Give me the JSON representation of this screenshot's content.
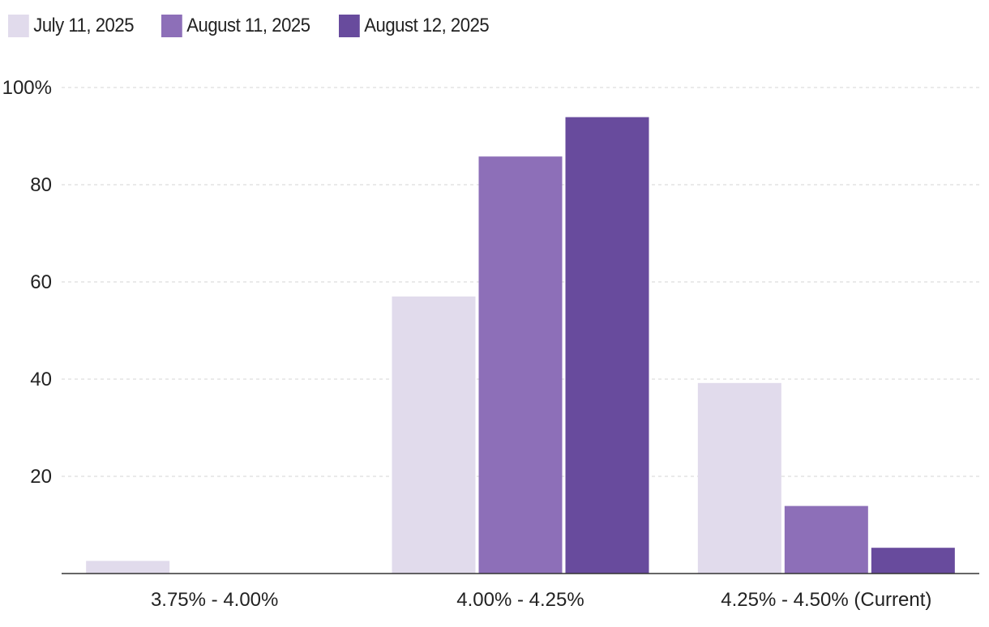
{
  "chart_data": {
    "type": "bar",
    "categories": [
      "3.75% - 4.00%",
      "4.00% - 4.25%",
      "4.25% - 4.50% (Current)"
    ],
    "series": [
      {
        "name": "July 11, 2025",
        "values": [
          2.6,
          57.0,
          39.2
        ],
        "color": "#e1dbec"
      },
      {
        "name": "August 11, 2025",
        "values": [
          0,
          85.8,
          13.9
        ],
        "color": "#8d6fb8"
      },
      {
        "name": "August 12, 2025",
        "values": [
          0,
          93.9,
          5.3
        ],
        "color": "#684b9d"
      }
    ],
    "ylim": [
      0,
      100
    ],
    "yticks": [
      {
        "value": 20,
        "label": "20"
      },
      {
        "value": 40,
        "label": "40"
      },
      {
        "value": 60,
        "label": "60"
      },
      {
        "value": 80,
        "label": "80"
      },
      {
        "value": 100,
        "label": "100%"
      }
    ],
    "grid": true,
    "legend_position": "top-left",
    "title": "",
    "xlabel": "",
    "ylabel": ""
  }
}
